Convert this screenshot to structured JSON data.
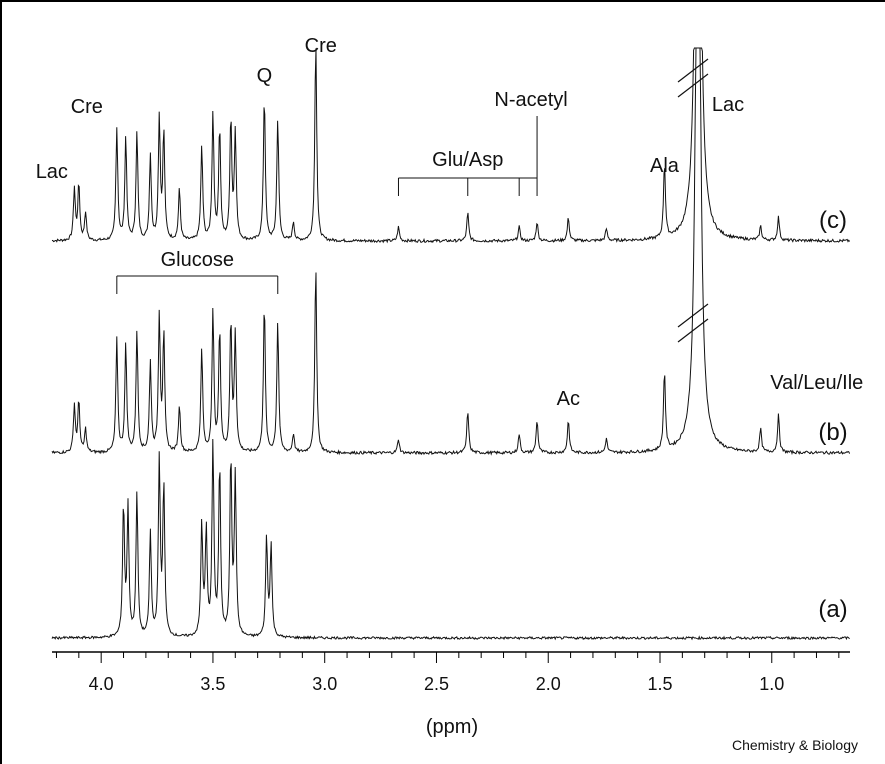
{
  "chart_data": {
    "type": "line",
    "xlabel": "(ppm)",
    "xlim": [
      4.22,
      0.65
    ],
    "x_reversed": true,
    "x_ticks": [
      "4.0",
      "3.5",
      "3.0",
      "2.5",
      "2.0",
      "1.5",
      "1.0"
    ],
    "x_tick_values": [
      4.0,
      3.5,
      3.0,
      2.5,
      2.0,
      1.5,
      1.0
    ],
    "grid": false,
    "series": [
      {
        "name": "(c)",
        "truncated_peak_ppm": 1.33,
        "peaks": [
          {
            "ppm": 4.12,
            "height": 0.22
          },
          {
            "ppm": 4.1,
            "height": 0.24
          },
          {
            "ppm": 4.07,
            "height": 0.12
          },
          {
            "ppm": 3.93,
            "height": 0.48
          },
          {
            "ppm": 3.89,
            "height": 0.44
          },
          {
            "ppm": 3.84,
            "height": 0.46
          },
          {
            "ppm": 3.78,
            "height": 0.36
          },
          {
            "ppm": 3.74,
            "height": 0.52
          },
          {
            "ppm": 3.72,
            "height": 0.46
          },
          {
            "ppm": 3.65,
            "height": 0.22
          },
          {
            "ppm": 3.55,
            "height": 0.4
          },
          {
            "ppm": 3.5,
            "height": 0.54
          },
          {
            "ppm": 3.47,
            "height": 0.48
          },
          {
            "ppm": 3.42,
            "height": 0.52
          },
          {
            "ppm": 3.4,
            "height": 0.46
          },
          {
            "ppm": 3.27,
            "height": 0.62
          },
          {
            "ppm": 3.21,
            "height": 0.52
          },
          {
            "ppm": 3.14,
            "height": 0.08
          },
          {
            "ppm": 3.04,
            "height": 0.86
          },
          {
            "ppm": 2.67,
            "height": 0.06
          },
          {
            "ppm": 2.36,
            "height": 0.12
          },
          {
            "ppm": 2.13,
            "height": 0.06
          },
          {
            "ppm": 2.05,
            "height": 0.08
          },
          {
            "ppm": 1.91,
            "height": 0.1
          },
          {
            "ppm": 1.74,
            "height": 0.05
          },
          {
            "ppm": 1.48,
            "height": 0.32
          },
          {
            "ppm": 1.05,
            "height": 0.06
          },
          {
            "ppm": 0.97,
            "height": 0.1
          }
        ]
      },
      {
        "name": "(b)",
        "truncated_peak_ppm": 1.33,
        "peaks": [
          {
            "ppm": 4.12,
            "height": 0.2
          },
          {
            "ppm": 4.1,
            "height": 0.22
          },
          {
            "ppm": 4.07,
            "height": 0.1
          },
          {
            "ppm": 3.93,
            "height": 0.48
          },
          {
            "ppm": 3.89,
            "height": 0.46
          },
          {
            "ppm": 3.84,
            "height": 0.52
          },
          {
            "ppm": 3.78,
            "height": 0.38
          },
          {
            "ppm": 3.74,
            "height": 0.58
          },
          {
            "ppm": 3.72,
            "height": 0.5
          },
          {
            "ppm": 3.65,
            "height": 0.2
          },
          {
            "ppm": 3.55,
            "height": 0.44
          },
          {
            "ppm": 3.5,
            "height": 0.6
          },
          {
            "ppm": 3.47,
            "height": 0.52
          },
          {
            "ppm": 3.42,
            "height": 0.56
          },
          {
            "ppm": 3.4,
            "height": 0.5
          },
          {
            "ppm": 3.27,
            "height": 0.64
          },
          {
            "ppm": 3.21,
            "height": 0.56
          },
          {
            "ppm": 3.14,
            "height": 0.08
          },
          {
            "ppm": 3.04,
            "height": 0.8
          },
          {
            "ppm": 2.67,
            "height": 0.06
          },
          {
            "ppm": 2.36,
            "height": 0.18
          },
          {
            "ppm": 2.13,
            "height": 0.08
          },
          {
            "ppm": 2.05,
            "height": 0.14
          },
          {
            "ppm": 1.91,
            "height": 0.14
          },
          {
            "ppm": 1.74,
            "height": 0.06
          },
          {
            "ppm": 1.48,
            "height": 0.34
          },
          {
            "ppm": 1.05,
            "height": 0.1
          },
          {
            "ppm": 0.97,
            "height": 0.16
          }
        ]
      },
      {
        "name": "(a)",
        "peaks": [
          {
            "ppm": 3.9,
            "height": 0.66
          },
          {
            "ppm": 3.88,
            "height": 0.64
          },
          {
            "ppm": 3.84,
            "height": 0.72
          },
          {
            "ppm": 3.78,
            "height": 0.52
          },
          {
            "ppm": 3.74,
            "height": 0.88
          },
          {
            "ppm": 3.72,
            "height": 0.76
          },
          {
            "ppm": 3.55,
            "height": 0.56
          },
          {
            "ppm": 3.53,
            "height": 0.52
          },
          {
            "ppm": 3.5,
            "height": 0.96
          },
          {
            "ppm": 3.47,
            "height": 0.86
          },
          {
            "ppm": 3.42,
            "height": 0.9
          },
          {
            "ppm": 3.4,
            "height": 0.8
          },
          {
            "ppm": 3.26,
            "height": 0.5
          },
          {
            "ppm": 3.24,
            "height": 0.46
          }
        ]
      }
    ],
    "annotations": {
      "labels": [
        {
          "text": "Lac",
          "ppm": 4.1
        },
        {
          "text": "Cre",
          "ppm": 3.93
        },
        {
          "text": "Q",
          "ppm": 3.27
        },
        {
          "text": "Cre",
          "ppm": 3.04
        },
        {
          "text": "N-acetyl",
          "ppm": 2.05
        },
        {
          "text": "Ala",
          "ppm": 1.48
        },
        {
          "text": "Lac",
          "ppm": 1.33
        },
        {
          "text": "Ac",
          "ppm": 1.91
        },
        {
          "text": "Val/Leu/Ile",
          "ppm": 1.0
        }
      ],
      "brackets": [
        {
          "text": "Glucose",
          "from_ppm": 3.93,
          "to_ppm": 3.21,
          "ticks_ppm": [
            3.93,
            3.21
          ]
        },
        {
          "text": "Glu/Asp",
          "from_ppm": 2.67,
          "to_ppm": 2.05,
          "ticks_ppm": [
            2.67,
            2.36,
            2.13,
            2.05
          ]
        }
      ]
    },
    "credit": "Chemistry & Biology"
  }
}
